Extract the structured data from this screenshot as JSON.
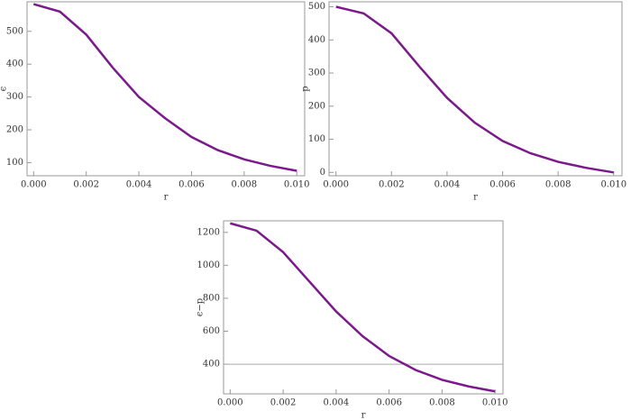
{
  "chart_data": [
    {
      "type": "line",
      "xlabel": "r",
      "ylabel": "ϵ",
      "x": [
        0,
        0.001,
        0.002,
        0.003,
        0.004,
        0.005,
        0.006,
        0.007,
        0.008,
        0.009,
        0.01
      ],
      "series": [
        {
          "color": "#7b1a8a",
          "values": [
            583,
            560,
            490,
            390,
            300,
            235,
            178,
            138,
            110,
            90,
            75
          ]
        }
      ],
      "xlim": [
        -0.00025,
        0.0103
      ],
      "ylim": [
        60,
        590
      ],
      "xticks": [
        {
          "value": 0,
          "label": "0.000"
        },
        {
          "value": 0.002,
          "label": "0.002"
        },
        {
          "value": 0.004,
          "label": "0.004"
        },
        {
          "value": 0.006,
          "label": "0.006"
        },
        {
          "value": 0.008,
          "label": "0.008"
        },
        {
          "value": 0.01,
          "label": "0.010"
        }
      ],
      "yticks": [
        100,
        200,
        300,
        400,
        500
      ]
    },
    {
      "type": "line",
      "xlabel": "r",
      "ylabel": "p",
      "x": [
        0,
        0.001,
        0.002,
        0.003,
        0.004,
        0.005,
        0.006,
        0.007,
        0.008,
        0.009,
        0.01
      ],
      "series": [
        {
          "color": "#7b1a8a",
          "values": [
            500,
            480,
            420,
            320,
            225,
            150,
            95,
            58,
            32,
            14,
            0
          ]
        }
      ],
      "xlim": [
        -0.00025,
        0.0103
      ],
      "ylim": [
        -10,
        515
      ],
      "xticks": [
        {
          "value": 0,
          "label": "0.000"
        },
        {
          "value": 0.002,
          "label": "0.002"
        },
        {
          "value": 0.004,
          "label": "0.004"
        },
        {
          "value": 0.006,
          "label": "0.006"
        },
        {
          "value": 0.008,
          "label": "0.008"
        },
        {
          "value": 0.01,
          "label": "0.010"
        }
      ],
      "yticks": [
        0,
        100,
        200,
        300,
        400,
        500
      ]
    },
    {
      "type": "line",
      "xlabel": "r",
      "ylabel": "ϵ−p",
      "x": [
        0,
        0.001,
        0.002,
        0.003,
        0.004,
        0.005,
        0.006,
        0.007,
        0.008,
        0.009,
        0.01
      ],
      "series": [
        {
          "color": "#7b1a8a",
          "values": [
            1255,
            1210,
            1080,
            900,
            720,
            570,
            450,
            365,
            305,
            265,
            235
          ]
        }
      ],
      "hline": 400,
      "xlim": [
        -0.00025,
        0.0103
      ],
      "ylim": [
        220,
        1270
      ],
      "xticks": [
        {
          "value": 0,
          "label": "0.000"
        },
        {
          "value": 0.002,
          "label": "0.002"
        },
        {
          "value": 0.004,
          "label": "0.004"
        },
        {
          "value": 0.006,
          "label": "0.006"
        },
        {
          "value": 0.008,
          "label": "0.008"
        },
        {
          "value": 0.01,
          "label": "0.010"
        }
      ],
      "yticks": [
        400,
        600,
        800,
        1000,
        1200
      ]
    }
  ]
}
